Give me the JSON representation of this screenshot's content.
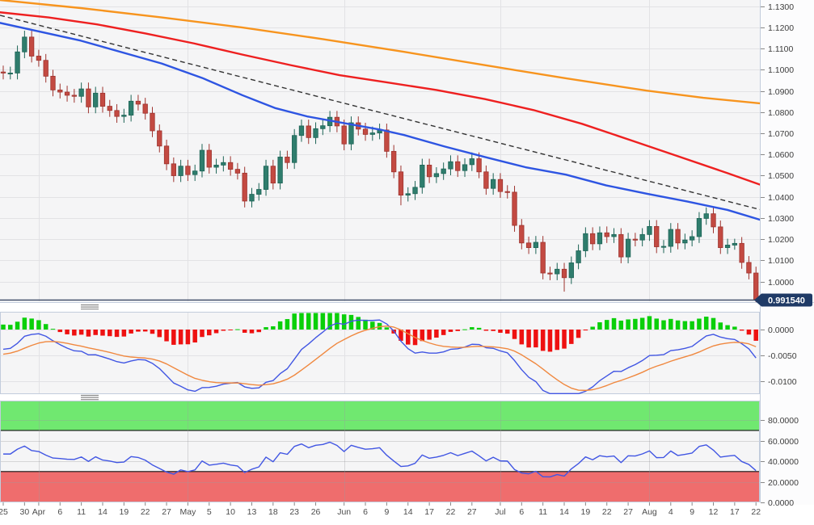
{
  "last_price_tag": "0.991540",
  "colors": {
    "panel_bg": "#f5f5f6",
    "axis_bg": "#fcfcfd",
    "grid": "#e2e2e5",
    "panel_border": "#c2ccdc",
    "bull_fill": "#2f7d6d",
    "bull_stroke": "#1d6456",
    "bear_fill": "#c34a42",
    "bear_stroke": "#9e332e",
    "ma_orange": "#f7941e",
    "ma_red": "#ee2020",
    "ma_blue": "#2e55e2",
    "trendline": "#333333",
    "macd_hist_pos": "#0acf0a",
    "macd_hist_neg": "#ee1111",
    "macd_line": "#4156e3",
    "signal_line": "#f0883f",
    "rsi_line": "#4156e3",
    "rsi_band_high": "#70e870",
    "rsi_band_low": "#ef6d6d",
    "band_edge": "#111111",
    "price_line": "#44506b",
    "tag_bg": "#1f3a66",
    "tag_text": "#ffffff",
    "axis_text": "#3c3c3c",
    "date_text": "#4c4c4c",
    "tick": "#888888",
    "grip": "#8a8a8a"
  },
  "price_axis_ticks": [
    {
      "label": "1.1300",
      "value": 1.13
    },
    {
      "label": "1.1200",
      "value": 1.12
    },
    {
      "label": "1.1100",
      "value": 1.11
    },
    {
      "label": "1.1000",
      "value": 1.1
    },
    {
      "label": "1.0900",
      "value": 1.09
    },
    {
      "label": "1.0800",
      "value": 1.08
    },
    {
      "label": "1.0700",
      "value": 1.07
    },
    {
      "label": "1.0600",
      "value": 1.06
    },
    {
      "label": "1.0500",
      "value": 1.05
    },
    {
      "label": "1.0400",
      "value": 1.04
    },
    {
      "label": "1.0300",
      "value": 1.03
    },
    {
      "label": "1.0200",
      "value": 1.02
    },
    {
      "label": "1.0100",
      "value": 1.01
    },
    {
      "label": "1.0000",
      "value": 1.0
    },
    {
      "label": "0.9900",
      "value": 0.99
    }
  ],
  "x_axis_ticks": [
    {
      "label": "25",
      "index": 0
    },
    {
      "label": "30",
      "index": 3
    },
    {
      "label": "Apr",
      "index": 5
    },
    {
      "label": "6",
      "index": 8
    },
    {
      "label": "11",
      "index": 11
    },
    {
      "label": "14",
      "index": 14
    },
    {
      "label": "19",
      "index": 17
    },
    {
      "label": "22",
      "index": 20
    },
    {
      "label": "27",
      "index": 23
    },
    {
      "label": "May",
      "index": 26
    },
    {
      "label": "5",
      "index": 29
    },
    {
      "label": "10",
      "index": 32
    },
    {
      "label": "13",
      "index": 35
    },
    {
      "label": "18",
      "index": 38
    },
    {
      "label": "23",
      "index": 41
    },
    {
      "label": "26",
      "index": 44
    },
    {
      "label": "Jun",
      "index": 48
    },
    {
      "label": "6",
      "index": 51
    },
    {
      "label": "9",
      "index": 54
    },
    {
      "label": "14",
      "index": 57
    },
    {
      "label": "17",
      "index": 60
    },
    {
      "label": "22",
      "index": 63
    },
    {
      "label": "27",
      "index": 66
    },
    {
      "label": "Jul",
      "index": 70
    },
    {
      "label": "6",
      "index": 73
    },
    {
      "label": "11",
      "index": 76
    },
    {
      "label": "14",
      "index": 79
    },
    {
      "label": "19",
      "index": 82
    },
    {
      "label": "22",
      "index": 85
    },
    {
      "label": "27",
      "index": 88
    },
    {
      "label": "Aug",
      "index": 91
    },
    {
      "label": "4",
      "index": 94
    },
    {
      "label": "9",
      "index": 97
    },
    {
      "label": "12",
      "index": 100
    },
    {
      "label": "17",
      "index": 103
    },
    {
      "label": "22",
      "index": 106
    }
  ],
  "month_grid_indices": [
    5,
    26,
    48,
    70,
    91
  ],
  "chart_data": [
    {
      "type": "candlestick",
      "title": "",
      "ylim": [
        0.988,
        1.133
      ],
      "last_price": 0.99154,
      "ohlc": [
        [
          1.099,
          1.102,
          1.0955,
          1.0985
        ],
        [
          1.0985,
          1.1015,
          1.0955,
          1.0985
        ],
        [
          1.0985,
          1.1115,
          1.0955,
          1.1085
        ],
        [
          1.1085,
          1.1185,
          1.1055,
          1.1155
        ],
        [
          1.1155,
          1.1185,
          1.1035,
          1.1065
        ],
        [
          1.1065,
          1.1095,
          1.1015,
          1.1045
        ],
        [
          1.1045,
          1.1075,
          1.094,
          1.097
        ],
        [
          1.097,
          1.1,
          1.0875,
          1.0905
        ],
        [
          1.0905,
          1.0935,
          1.0865,
          1.0895
        ],
        [
          1.0895,
          1.0925,
          1.085,
          1.088
        ],
        [
          1.088,
          1.091,
          1.0845,
          1.0875
        ],
        [
          1.0875,
          1.094,
          1.0845,
          1.091
        ],
        [
          1.091,
          1.094,
          1.0795,
          1.0825
        ],
        [
          1.0825,
          1.092,
          1.0795,
          1.089
        ],
        [
          1.089,
          1.092,
          1.0798,
          1.0828
        ],
        [
          1.0828,
          1.0858,
          1.0778,
          1.0808
        ],
        [
          1.0808,
          1.0838,
          1.075,
          1.078
        ],
        [
          1.078,
          1.0816,
          1.075,
          1.0786
        ],
        [
          1.0786,
          1.0882,
          1.0756,
          1.0852
        ],
        [
          1.0852,
          1.0882,
          1.0808,
          1.0838
        ],
        [
          1.0838,
          1.0868,
          1.0765,
          1.0795
        ],
        [
          1.0795,
          1.0825,
          1.0682,
          1.0712
        ],
        [
          1.0712,
          1.0742,
          1.061,
          1.064
        ],
        [
          1.064,
          1.067,
          1.0526,
          1.0556
        ],
        [
          1.0556,
          1.0586,
          1.047,
          1.05
        ],
        [
          1.05,
          1.0575,
          1.047,
          1.0545
        ],
        [
          1.0545,
          1.0575,
          1.0475,
          1.0505
        ],
        [
          1.0505,
          1.0552,
          1.0475,
          1.0522
        ],
        [
          1.0522,
          1.065,
          1.0492,
          1.062
        ],
        [
          1.062,
          1.065,
          1.051,
          1.054
        ],
        [
          1.054,
          1.058,
          1.051,
          1.055
        ],
        [
          1.055,
          1.0592,
          1.052,
          1.0562
        ],
        [
          1.0562,
          1.0592,
          1.05,
          1.053
        ],
        [
          1.053,
          1.056,
          1.0482,
          1.0512
        ],
        [
          1.0512,
          1.0542,
          1.035,
          1.038
        ],
        [
          1.038,
          1.0442,
          1.035,
          1.0412
        ],
        [
          1.0412,
          1.0465,
          1.0382,
          1.0435
        ],
        [
          1.0435,
          1.0575,
          1.0405,
          1.0545
        ],
        [
          1.0545,
          1.0575,
          1.0435,
          1.0465
        ],
        [
          1.0465,
          1.0618,
          1.0435,
          1.0588
        ],
        [
          1.0588,
          1.0618,
          1.0532,
          1.0562
        ],
        [
          1.0562,
          1.072,
          1.0532,
          1.069
        ],
        [
          1.069,
          1.0765,
          1.066,
          1.0735
        ],
        [
          1.0735,
          1.0765,
          1.065,
          1.068
        ],
        [
          1.068,
          1.0752,
          1.065,
          1.0722
        ],
        [
          1.0722,
          1.0766,
          1.0692,
          1.0736
        ],
        [
          1.0736,
          1.0806,
          1.0706,
          1.0776
        ],
        [
          1.0776,
          1.0806,
          1.0705,
          1.0735
        ],
        [
          1.0735,
          1.0765,
          1.062,
          1.065
        ],
        [
          1.065,
          1.078,
          1.062,
          1.075
        ],
        [
          1.075,
          1.078,
          1.069,
          1.072
        ],
        [
          1.072,
          1.075,
          1.0665,
          1.0695
        ],
        [
          1.0695,
          1.0732,
          1.0665,
          1.0702
        ],
        [
          1.0702,
          1.0746,
          1.0672,
          1.0716
        ],
        [
          1.0716,
          1.0746,
          1.0585,
          1.0615
        ],
        [
          1.0615,
          1.0645,
          1.0488,
          1.0518
        ],
        [
          1.0518,
          1.0548,
          1.036,
          1.0408
        ],
        [
          1.0408,
          1.0445,
          1.0378,
          1.0415
        ],
        [
          1.0415,
          1.0475,
          1.0385,
          1.0445
        ],
        [
          1.0445,
          1.058,
          1.0415,
          1.055
        ],
        [
          1.055,
          1.058,
          1.0465,
          1.0495
        ],
        [
          1.0495,
          1.054,
          1.0465,
          1.051
        ],
        [
          1.051,
          1.0562,
          1.048,
          1.0532
        ],
        [
          1.0532,
          1.0596,
          1.0502,
          1.0566
        ],
        [
          1.0566,
          1.0596,
          1.0494,
          1.0524
        ],
        [
          1.0524,
          1.0582,
          1.0494,
          1.0552
        ],
        [
          1.0552,
          1.061,
          1.0522,
          1.058
        ],
        [
          1.058,
          1.061,
          1.0488,
          1.0518
        ],
        [
          1.0518,
          1.0548,
          1.041,
          1.044
        ],
        [
          1.044,
          1.0512,
          1.041,
          1.0482
        ],
        [
          1.0482,
          1.0512,
          1.0395,
          1.0425
        ],
        [
          1.0425,
          1.0455,
          1.0392,
          1.0422
        ],
        [
          1.0422,
          1.0452,
          1.0235,
          1.0265
        ],
        [
          1.0265,
          1.0295,
          1.0152,
          1.0182
        ],
        [
          1.0182,
          1.0212,
          1.013,
          1.016
        ],
        [
          1.016,
          1.0215,
          1.013,
          1.0185
        ],
        [
          1.0185,
          1.0215,
          1.001,
          1.004
        ],
        [
          1.004,
          1.007,
          1.0006,
          1.0036
        ],
        [
          1.0036,
          1.0088,
          1.0006,
          1.0058
        ],
        [
          1.0058,
          1.0088,
          0.9952,
          1.0018
        ],
        [
          1.0018,
          1.0118,
          0.9988,
          1.0088
        ],
        [
          1.0088,
          1.0175,
          1.0058,
          1.0145
        ],
        [
          1.0145,
          1.0256,
          1.0115,
          1.0226
        ],
        [
          1.0226,
          1.0256,
          1.0148,
          1.0178
        ],
        [
          1.0178,
          1.026,
          1.0148,
          1.023
        ],
        [
          1.023,
          1.026,
          1.0182,
          1.0212
        ],
        [
          1.0212,
          1.0252,
          1.0182,
          1.0222
        ],
        [
          1.0222,
          1.0252,
          1.0086,
          1.0116
        ],
        [
          1.0116,
          1.023,
          1.0086,
          1.02
        ],
        [
          1.02,
          1.023,
          1.0166,
          1.0196
        ],
        [
          1.0196,
          1.0252,
          1.0166,
          1.0222
        ],
        [
          1.0222,
          1.029,
          1.0192,
          1.026
        ],
        [
          1.026,
          1.029,
          1.0134,
          1.0164
        ],
        [
          1.0164,
          1.0196,
          1.0134,
          1.0166
        ],
        [
          1.0166,
          1.0276,
          1.0136,
          1.0246
        ],
        [
          1.0246,
          1.0276,
          1.0152,
          1.0182
        ],
        [
          1.0182,
          1.0226,
          1.0152,
          1.0196
        ],
        [
          1.0196,
          1.0242,
          1.0166,
          1.0212
        ],
        [
          1.0212,
          1.0328,
          1.0182,
          1.0298
        ],
        [
          1.0298,
          1.035,
          1.0268,
          1.032
        ],
        [
          1.032,
          1.035,
          1.0228,
          1.0258
        ],
        [
          1.0258,
          1.0288,
          1.013,
          1.016
        ],
        [
          1.016,
          1.0202,
          1.013,
          1.0172
        ],
        [
          1.0172,
          1.0202,
          1.015,
          1.018
        ],
        [
          1.018,
          1.021,
          1.006,
          1.009
        ],
        [
          1.009,
          1.012,
          1.001,
          1.004
        ],
        [
          1.004,
          1.007,
          0.99,
          0.9915
        ]
      ],
      "overlays": {
        "sma_slow_orange": [
          [
            0,
            1.133
          ],
          [
            100,
            1.1292
          ],
          [
            200,
            1.1248
          ],
          [
            300,
            1.12
          ],
          [
            400,
            1.1145
          ],
          [
            500,
            1.1085
          ],
          [
            600,
            1.1022
          ],
          [
            700,
            1.096
          ],
          [
            800,
            1.0902
          ],
          [
            870,
            1.0868
          ],
          [
            940,
            1.0842
          ]
        ],
        "sma_mid_red": [
          [
            0,
            1.1272
          ],
          [
            60,
            1.1248
          ],
          [
            120,
            1.1215
          ],
          [
            180,
            1.1172
          ],
          [
            240,
            1.1125
          ],
          [
            300,
            1.1072
          ],
          [
            360,
            1.1022
          ],
          [
            420,
            1.0975
          ],
          [
            480,
            1.094
          ],
          [
            540,
            1.0905
          ],
          [
            600,
            1.0862
          ],
          [
            660,
            1.081
          ],
          [
            720,
            1.0745
          ],
          [
            780,
            1.0668
          ],
          [
            840,
            1.059
          ],
          [
            900,
            1.0512
          ],
          [
            940,
            1.0458
          ]
        ],
        "ema_fast_blue": [
          [
            0,
            1.1222
          ],
          [
            100,
            1.1138
          ],
          [
            200,
            1.103
          ],
          [
            250,
            1.0962
          ],
          [
            300,
            1.088
          ],
          [
            340,
            1.082
          ],
          [
            380,
            1.078
          ],
          [
            420,
            1.0752
          ],
          [
            470,
            1.0718
          ],
          [
            500,
            1.0692
          ],
          [
            550,
            1.0638
          ],
          [
            600,
            1.0588
          ],
          [
            650,
            1.054
          ],
          [
            700,
            1.0505
          ],
          [
            750,
            1.0454
          ],
          [
            800,
            1.0415
          ],
          [
            850,
            1.0378
          ],
          [
            900,
            1.0338
          ],
          [
            940,
            1.0292
          ]
        ],
        "trendline_dashed": [
          [
            0,
            1.1258
          ],
          [
            940,
            1.034
          ]
        ]
      }
    },
    {
      "type": "bar",
      "name": "macd",
      "params": {
        "fast": 12,
        "slow": 26,
        "signal": 9
      },
      "source": "computed from candlestick closes",
      "y_ticks": [
        {
          "label": "0.0000",
          "value": 0
        },
        {
          "label": "-0.0050",
          "value": -0.005
        },
        {
          "label": "-0.0100",
          "value": -0.01
        }
      ]
    },
    {
      "type": "line",
      "name": "rsi",
      "params": {
        "period": 14
      },
      "bands": {
        "overbought": 70,
        "oversold": 30
      },
      "source": "computed from candlestick closes",
      "y_ticks": [
        {
          "label": "80.0000",
          "value": 80
        },
        {
          "label": "60.0000",
          "value": 60
        },
        {
          "label": "40.0000",
          "value": 40
        },
        {
          "label": "20.0000",
          "value": 20
        },
        {
          "label": "0.0000",
          "value": 0
        }
      ]
    }
  ]
}
